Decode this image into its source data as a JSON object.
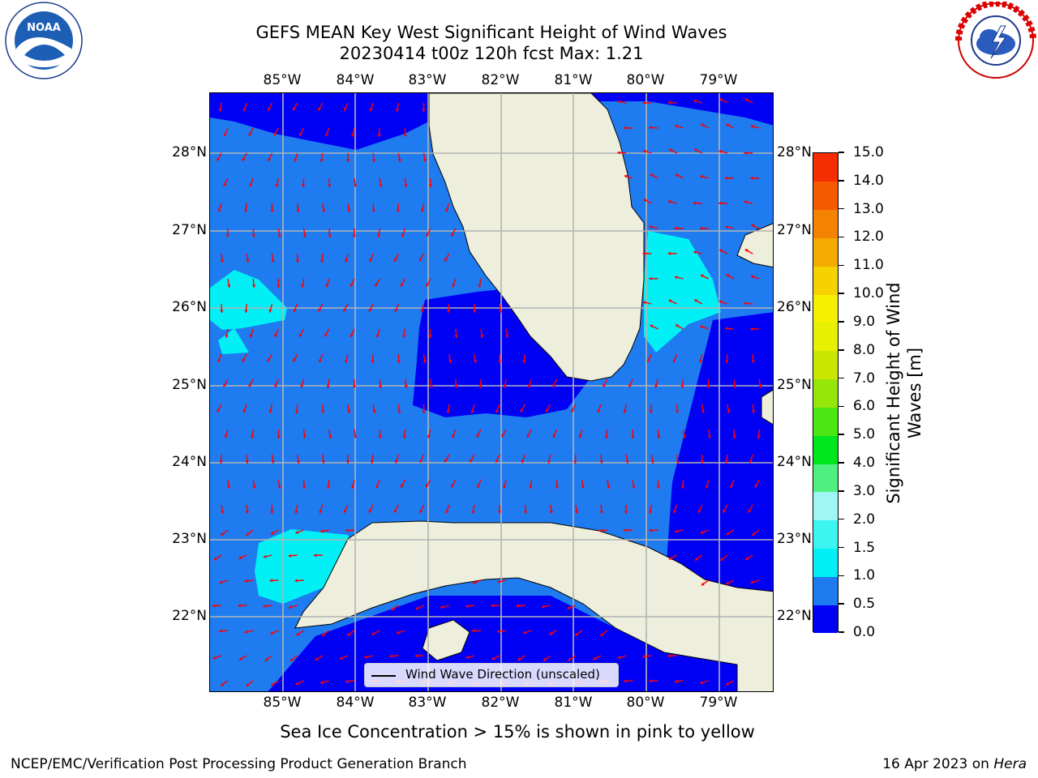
{
  "title_line1": "GEFS MEAN Key West Significant Height of Wind Waves",
  "title_line2": "20230414 t00z 120h fcst   Max: 1.21",
  "lon_labels": [
    "85°W",
    "84°W",
    "83°W",
    "82°W",
    "81°W",
    "80°W",
    "79°W"
  ],
  "lat_labels": [
    "28°N",
    "27°N",
    "26°N",
    "25°N",
    "24°N",
    "23°N",
    "22°N"
  ],
  "colorbar": {
    "label": "Significant Height of Wind Waves [m]",
    "ticks": [
      "0.0",
      "0.5",
      "1.0",
      "1.5",
      "2.0",
      "3.0",
      "4.0",
      "5.0",
      "6.0",
      "7.0",
      "8.0",
      "9.0",
      "10.0",
      "11.0",
      "12.0",
      "13.0",
      "14.0",
      "15.0"
    ],
    "colors": [
      "#0000f5",
      "#1e7bf0",
      "#00f0f5",
      "#3cf5f0",
      "#a0f5f5",
      "#50f080",
      "#00e61e",
      "#4be614",
      "#96e60a",
      "#c8e600",
      "#e6f000",
      "#f5f000",
      "#f5d200",
      "#f5aa00",
      "#f58200",
      "#f55a00",
      "#f52d00"
    ]
  },
  "legend_label": "Wind Wave Direction (unscaled)",
  "footnote": "Sea Ice Concentration > 15% is shown in pink to yellow",
  "credit": "NCEP/EMC/Verification Post Processing Product Generation Branch",
  "date_text": "16 Apr 2023 on",
  "date_host": "Hera",
  "logos": {
    "noaa_text": "NOAA",
    "nws_text": "NATIONAL WEATHER SERVICE"
  },
  "map_colors": {
    "land": "#eeeedd",
    "low": "#0000f5",
    "mid": "#1e7bf0",
    "high": "#00f0f5",
    "arrow": "#ff0000",
    "grid": "#b4b4b4"
  }
}
